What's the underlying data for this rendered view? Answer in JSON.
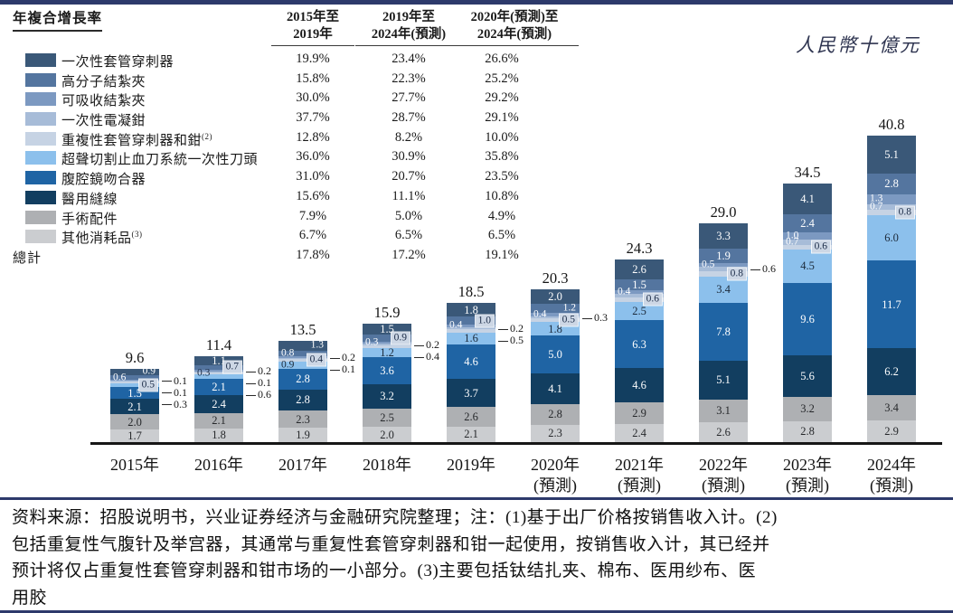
{
  "unit_label": "人民幣十億元",
  "chart_data": {
    "type": "stacked-bar",
    "unit_label": "人民幣十億元",
    "legend_position": "top-left",
    "ylim": [
      0,
      45
    ],
    "cagr_table": {
      "title": "年複合增長率",
      "columns": [
        {
          "line1": "2015年至",
          "line2": "2019年"
        },
        {
          "line1": "2019年至",
          "line2": "2024年(預測)"
        },
        {
          "line1": "2020年(預測)至",
          "line2": "2024年(預測)"
        }
      ],
      "rows": [
        {
          "label": "一次性套管穿刺器",
          "sup": "",
          "values": [
            "19.9%",
            "23.4%",
            "26.6%"
          ]
        },
        {
          "label": "高分子結紮夾",
          "sup": "",
          "values": [
            "15.8%",
            "22.3%",
            "25.2%"
          ]
        },
        {
          "label": "可吸收結紮夾",
          "sup": "",
          "values": [
            "30.0%",
            "27.7%",
            "29.2%"
          ]
        },
        {
          "label": "一次性電凝鉗",
          "sup": "",
          "values": [
            "37.7%",
            "28.7%",
            "29.1%"
          ]
        },
        {
          "label": "重複性套管穿刺器和鉗",
          "sup": "(2)",
          "values": [
            "12.8%",
            "8.2%",
            "10.0%"
          ]
        },
        {
          "label": "超聲切割止血刀系統一次性刀頭",
          "sup": "",
          "values": [
            "36.0%",
            "30.9%",
            "35.8%"
          ]
        },
        {
          "label": "腹腔鏡吻合器",
          "sup": "",
          "values": [
            "31.0%",
            "20.7%",
            "23.5%"
          ]
        },
        {
          "label": "醫用縫線",
          "sup": "",
          "values": [
            "15.6%",
            "11.1%",
            "10.8%"
          ]
        },
        {
          "label": "手術配件",
          "sup": "",
          "values": [
            "7.9%",
            "5.0%",
            "4.9%"
          ]
        },
        {
          "label": "其他消耗品",
          "sup": "(3)",
          "values": [
            "6.7%",
            "6.5%",
            "6.5%"
          ]
        }
      ],
      "total": {
        "label": "總計",
        "values": [
          "17.8%",
          "17.2%",
          "19.1%"
        ]
      }
    },
    "categories": [
      {
        "name": "一次性套管穿刺器",
        "color": "#3a5878",
        "text": "#ffffff"
      },
      {
        "name": "高分子結紮夾",
        "color": "#54759f",
        "text": "#ffffff"
      },
      {
        "name": "可吸收結紮夾",
        "color": "#7c99c1",
        "text": "#ffffff"
      },
      {
        "name": "一次性電凝鉗",
        "color": "#a7bcd8",
        "text": "#ffffff"
      },
      {
        "name": "重複性套管穿刺器和鉗",
        "color": "#c6d3e4",
        "text": "#20304a"
      },
      {
        "name": "超聲切割止血刀系統一次性刀頭",
        "color": "#8cc0ec",
        "text": "#1c2a3a"
      },
      {
        "name": "腹腔鏡吻合器",
        "color": "#1f64a4",
        "text": "#ffffff"
      },
      {
        "name": "醫用縫線",
        "color": "#123e60",
        "text": "#ffffff"
      },
      {
        "name": "手術配件",
        "color": "#aeb0b3",
        "text": "#26282b"
      },
      {
        "name": "其他消耗品",
        "color": "#cbcdd0",
        "text": "#26282b"
      }
    ],
    "x_forecast_suffix": "(預測)",
    "bars": [
      {
        "year": "2015年",
        "forecast": false,
        "total": "9.6",
        "segments": [
          {
            "v": 0.9,
            "label": "0.9",
            "style": "r"
          },
          {
            "v": 0.6,
            "label": "0.6",
            "style": "l"
          },
          {
            "v": 0.1,
            "label": "0.1",
            "style": "co"
          },
          {
            "v": 0.1,
            "label": "0.1",
            "style": "co"
          },
          {
            "v": 0.3,
            "label": "0.3",
            "style": "co"
          },
          {
            "v": 0.5,
            "label": "0.5",
            "style": "chip"
          },
          {
            "v": 1.5,
            "label": "1.5",
            "style": "c"
          },
          {
            "v": 2.1,
            "label": "2.1",
            "style": "c"
          },
          {
            "v": 2.0,
            "label": "2.0",
            "style": "c"
          },
          {
            "v": 1.7,
            "label": "1.7",
            "style": "c"
          }
        ]
      },
      {
        "year": "2016年",
        "forecast": false,
        "total": "11.4",
        "segments": [
          {
            "v": 1.1,
            "label": "1.1",
            "style": "c"
          },
          {
            "v": 0.7,
            "label": "0.7",
            "style": "chip"
          },
          {
            "v": 0.2,
            "label": "0.2",
            "style": "co"
          },
          {
            "v": 0.1,
            "label": "0.1",
            "style": "co"
          },
          {
            "v": 0.3,
            "label": "0.3",
            "style": "l"
          },
          {
            "v": 0.6,
            "label": "0.6",
            "style": "co"
          },
          {
            "v": 2.1,
            "label": "2.1",
            "style": "c"
          },
          {
            "v": 2.4,
            "label": "2.4",
            "style": "c"
          },
          {
            "v": 2.1,
            "label": "2.1",
            "style": "c"
          },
          {
            "v": 1.8,
            "label": "1.8",
            "style": "c"
          }
        ]
      },
      {
        "year": "2017年",
        "forecast": false,
        "total": "13.5",
        "segments": [
          {
            "v": 1.3,
            "label": "1.3",
            "style": "r"
          },
          {
            "v": 0.8,
            "label": "0.8",
            "style": "l"
          },
          {
            "v": 0.2,
            "label": "0.2",
            "style": "co"
          },
          {
            "v": 0.1,
            "label": "0.1",
            "style": "co"
          },
          {
            "v": 0.4,
            "label": "0.4",
            "style": "chip"
          },
          {
            "v": 0.9,
            "label": "0.9",
            "style": "l"
          },
          {
            "v": 2.8,
            "label": "2.8",
            "style": "c"
          },
          {
            "v": 2.8,
            "label": "2.8",
            "style": "c"
          },
          {
            "v": 2.3,
            "label": "2.3",
            "style": "c"
          },
          {
            "v": 1.9,
            "label": "1.9",
            "style": "c"
          }
        ]
      },
      {
        "year": "2018年",
        "forecast": false,
        "total": "15.9",
        "segments": [
          {
            "v": 1.5,
            "label": "1.5",
            "style": "c"
          },
          {
            "v": 0.9,
            "label": "0.9",
            "style": "chip"
          },
          {
            "v": 0.3,
            "label": "0.3",
            "style": "l"
          },
          {
            "v": 0.2,
            "label": "0.2",
            "style": "co"
          },
          {
            "v": 0.4,
            "label": "0.4",
            "style": "co"
          },
          {
            "v": 1.2,
            "label": "1.2",
            "style": "c"
          },
          {
            "v": 3.6,
            "label": "3.6",
            "style": "c"
          },
          {
            "v": 3.2,
            "label": "3.2",
            "style": "c"
          },
          {
            "v": 2.5,
            "label": "2.5",
            "style": "c"
          },
          {
            "v": 2.0,
            "label": "2.0",
            "style": "c"
          }
        ]
      },
      {
        "year": "2019年",
        "forecast": false,
        "total": "18.5",
        "segments": [
          {
            "v": 1.8,
            "label": "1.8",
            "style": "c"
          },
          {
            "v": 1.0,
            "label": "1.0",
            "style": "chip"
          },
          {
            "v": 0.4,
            "label": "0.4",
            "style": "l"
          },
          {
            "v": 0.2,
            "label": "0.2",
            "style": "co"
          },
          {
            "v": 0.5,
            "label": "0.5",
            "style": "co"
          },
          {
            "v": 1.6,
            "label": "1.6",
            "style": "c"
          },
          {
            "v": 4.6,
            "label": "4.6",
            "style": "c"
          },
          {
            "v": 3.7,
            "label": "3.7",
            "style": "c"
          },
          {
            "v": 2.6,
            "label": "2.6",
            "style": "c"
          },
          {
            "v": 2.1,
            "label": "2.1",
            "style": "c"
          }
        ]
      },
      {
        "year": "2020年",
        "forecast": true,
        "total": "20.3",
        "segments": [
          {
            "v": 2.0,
            "label": "2.0",
            "style": "c"
          },
          {
            "v": 1.2,
            "label": "1.2",
            "style": "r"
          },
          {
            "v": 0.4,
            "label": "0.4",
            "style": "l"
          },
          {
            "v": 0.3,
            "label": "0.3",
            "style": "co"
          },
          {
            "v": 0.5,
            "label": "0.5",
            "style": "chip"
          },
          {
            "v": 1.8,
            "label": "1.8",
            "style": "c"
          },
          {
            "v": 5.0,
            "label": "5.0",
            "style": "c"
          },
          {
            "v": 4.1,
            "label": "4.1",
            "style": "c"
          },
          {
            "v": 2.8,
            "label": "2.8",
            "style": "c"
          },
          {
            "v": 2.3,
            "label": "2.3",
            "style": "c"
          }
        ]
      },
      {
        "year": "2021年",
        "forecast": true,
        "total": "24.3",
        "segments": [
          {
            "v": 2.6,
            "label": "2.6",
            "style": "c"
          },
          {
            "v": 1.5,
            "label": "1.5",
            "style": "c"
          },
          {
            "v": 0.4,
            "label": "0.4",
            "style": "l"
          },
          {
            "v": 0.5,
            "label": "",
            "style": ""
          },
          {
            "v": 0.6,
            "label": "0.6",
            "style": "chip"
          },
          {
            "v": 2.5,
            "label": "2.5",
            "style": "c"
          },
          {
            "v": 6.3,
            "label": "6.3",
            "style": "c"
          },
          {
            "v": 4.6,
            "label": "4.6",
            "style": "c"
          },
          {
            "v": 2.9,
            "label": "2.9",
            "style": "c"
          },
          {
            "v": 2.4,
            "label": "2.4",
            "style": "c"
          }
        ]
      },
      {
        "year": "2022年",
        "forecast": true,
        "total": "29.0",
        "segments": [
          {
            "v": 3.3,
            "label": "3.3",
            "style": "c"
          },
          {
            "v": 1.9,
            "label": "1.9",
            "style": "c"
          },
          {
            "v": 0.5,
            "label": "0.5",
            "style": "l"
          },
          {
            "v": 0.6,
            "label": "0.6",
            "style": "co"
          },
          {
            "v": 0.8,
            "label": "0.8",
            "style": "chip"
          },
          {
            "v": 3.4,
            "label": "3.4",
            "style": "c"
          },
          {
            "v": 7.8,
            "label": "7.8",
            "style": "c"
          },
          {
            "v": 5.1,
            "label": "5.1",
            "style": "c"
          },
          {
            "v": 3.1,
            "label": "3.1",
            "style": "c"
          },
          {
            "v": 2.6,
            "label": "2.6",
            "style": "c"
          }
        ]
      },
      {
        "year": "2023年",
        "forecast": true,
        "total": "34.5",
        "segments": [
          {
            "v": 4.1,
            "label": "4.1",
            "style": "c"
          },
          {
            "v": 2.4,
            "label": "2.4",
            "style": "c"
          },
          {
            "v": 1.0,
            "label": "1.0",
            "style": "l"
          },
          {
            "v": 0.7,
            "label": "0.7",
            "style": "l"
          },
          {
            "v": 0.6,
            "label": "0.6",
            "style": "chip"
          },
          {
            "v": 4.5,
            "label": "4.5",
            "style": "c"
          },
          {
            "v": 9.6,
            "label": "9.6",
            "style": "c"
          },
          {
            "v": 5.6,
            "label": "5.6",
            "style": "c"
          },
          {
            "v": 3.2,
            "label": "3.2",
            "style": "c"
          },
          {
            "v": 2.8,
            "label": "2.8",
            "style": "c"
          }
        ]
      },
      {
        "year": "2024年",
        "forecast": true,
        "total": "40.8",
        "segments": [
          {
            "v": 5.1,
            "label": "5.1",
            "style": "c"
          },
          {
            "v": 2.8,
            "label": "2.8",
            "style": "c"
          },
          {
            "v": 1.3,
            "label": "1.3",
            "style": "l"
          },
          {
            "v": 0.7,
            "label": "0.7",
            "style": "l"
          },
          {
            "v": 0.8,
            "label": "0.8",
            "style": "chip"
          },
          {
            "v": 6.0,
            "label": "6.0",
            "style": "c"
          },
          {
            "v": 11.7,
            "label": "11.7",
            "style": "c"
          },
          {
            "v": 6.2,
            "label": "6.2",
            "style": "c"
          },
          {
            "v": 3.4,
            "label": "3.4",
            "style": "c"
          },
          {
            "v": 2.9,
            "label": "2.9",
            "style": "c"
          }
        ]
      }
    ]
  },
  "footer": {
    "lines": [
      "资料来源：招股说明书，兴业证券经济与金融研究院整理；注：(1)基于出厂价格按销售收入计。(2)",
      "包括重复性气腹针及举宫器，其通常与重复性套管穿刺器和钳一起使用，按销售收入计，其已经并",
      "预计将仅占重复性套管穿刺器和钳市场的一小部分。(3)主要包括钛结扎夹、棉布、医用纱布、医",
      "用胶"
    ]
  }
}
